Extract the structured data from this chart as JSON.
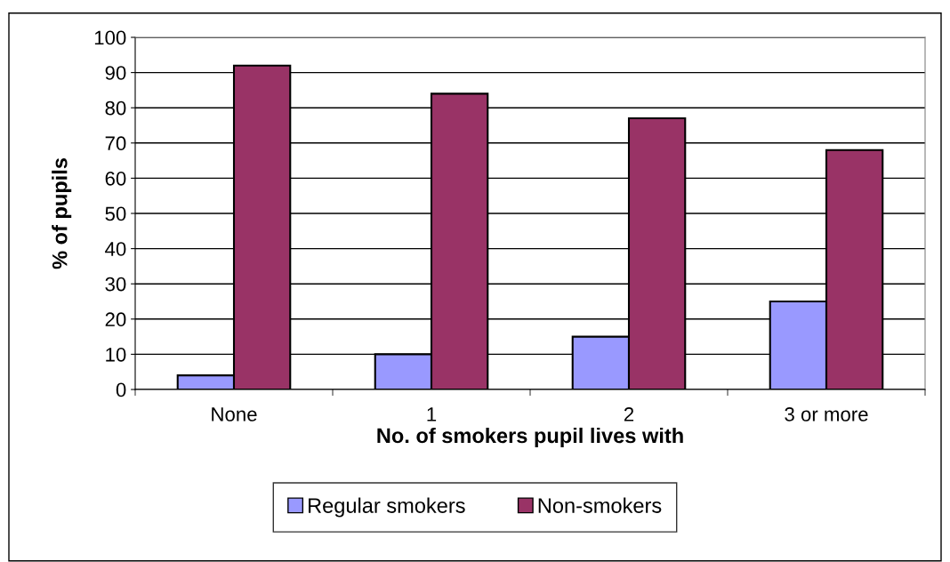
{
  "chart_data": {
    "type": "bar",
    "xlabel": "No. of smokers pupil lives with",
    "ylabel": "% of pupils",
    "categories": [
      "None",
      "1",
      "2",
      "3 or more"
    ],
    "series": [
      {
        "name": "Regular smokers",
        "color": "#9999ff",
        "values": [
          4,
          10,
          15,
          25
        ]
      },
      {
        "name": "Non-smokers",
        "color": "#993366",
        "values": [
          92,
          84,
          77,
          68
        ]
      }
    ],
    "ylim": [
      0,
      100
    ],
    "yticks": [
      0,
      10,
      20,
      30,
      40,
      50,
      60,
      70,
      80,
      90,
      100
    ],
    "grid": "y",
    "legend": "bottom"
  }
}
